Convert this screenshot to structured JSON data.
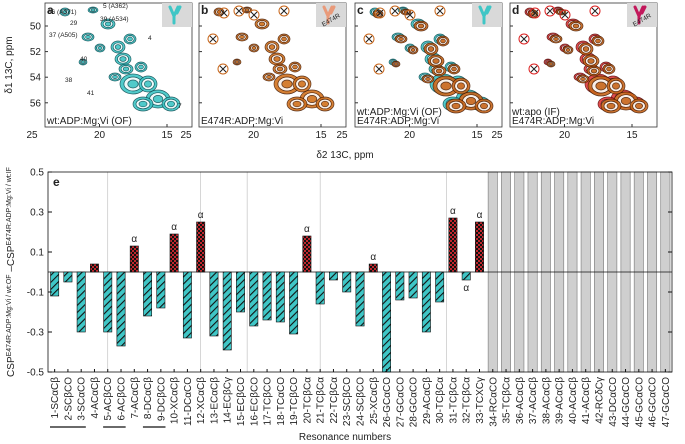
{
  "spectra": {
    "y_label": "δ1 13C, ppm",
    "x_label": "δ2 13C, ppm",
    "y_ticks": [
      50,
      52,
      54,
      56
    ],
    "x_ticks": [
      25,
      20,
      15
    ],
    "panels": [
      {
        "letter": "a",
        "captions": [
          "wt:ADP:Mg:Vi (OF)"
        ],
        "peak_labels": [
          "36 (A371)",
          "5 (A362)",
          "39 (A534)",
          "37 (A505)",
          "29",
          "4",
          "40",
          "38",
          "41",
          "7"
        ]
      },
      {
        "letter": "b",
        "captions": [
          "E474R:ADP:Mg:Vi"
        ],
        "badge": "E474R"
      },
      {
        "letter": "c",
        "captions": [
          "wt:ADP:Mg:Vi (OF)",
          "E474R:ADP:Mg:Vi"
        ]
      },
      {
        "letter": "d",
        "captions": [
          "wt:apo (IF)",
          "E474R:ADP:Mg:Vi"
        ],
        "badge": "E474R"
      }
    ]
  },
  "chart_data": {
    "type": "bar",
    "panel_letter": "e",
    "y_label_parts": [
      "CSP",
      "E474R:ADP:Mg:Vi / wt:OF",
      " –CSP",
      "E474R:ADP:Mg:Vi / wt:IF"
    ],
    "x_label": "Resonance numbers",
    "categories": [
      "1-SCαCβ",
      "2-SCβCO",
      "3-SCαCO",
      "4-ACαCβ",
      "5-ACβCO",
      "6-ACβCO",
      "7-ACαCβ",
      "8-DCαCβ",
      "9-DCβCO",
      "10-XCαCβ",
      "11-DCαCO",
      "12-XCαCβ",
      "13-ECαCβ",
      "14-ECβCγ",
      "15-ECβCO",
      "16-ECβCO",
      "17-TCβCO",
      "18-TCαCO",
      "19-TCβCO",
      "20-TCβCα",
      "21-TCβCα",
      "22-TCβCα",
      "23-SCβCO",
      "24-SCβCO",
      "25-XCαCβ",
      "26-GCαCO",
      "27-GCαCO",
      "28-GCαCO",
      "29-ACαCβ",
      "30-TCβCα",
      "31-TCβCα",
      "32-TCβCα",
      "33-TCXCγ",
      "34-RCαCO",
      "35-TCβCα",
      "36-ACαCβ",
      "37-ACαCβ",
      "38-ACαCβ",
      "39-ACαCβ",
      "40-ACαCβ",
      "41-ACαCβ",
      "42-RCδCγ",
      "43-DCαCO",
      "44-GCαCO",
      "45-GCαCO",
      "46-GCαCO",
      "47-GCαCO"
    ],
    "values": [
      -0.12,
      -0.05,
      -0.3,
      0.04,
      -0.3,
      -0.37,
      0.13,
      -0.22,
      -0.18,
      0.19,
      -0.33,
      0.25,
      -0.32,
      -0.39,
      -0.2,
      -0.27,
      -0.24,
      -0.25,
      -0.31,
      0.18,
      -0.16,
      -0.04,
      -0.1,
      -0.27,
      0.04,
      -0.5,
      -0.14,
      -0.13,
      -0.3,
      -0.15,
      0.27,
      -0.04,
      0.25,
      null,
      null,
      null,
      null,
      null,
      null,
      null,
      null,
      null,
      null,
      null,
      null,
      null,
      null
    ],
    "positive_color": "#c0272d",
    "negative_color": "#3fc6c6",
    "missing_color": "#cfcfcf",
    "ylim": [
      -0.5,
      0.5
    ],
    "yticks": [
      -0.5,
      -0.3,
      -0.1,
      0.1,
      0.3,
      0.5
    ],
    "annotations": [
      {
        "text": "α",
        "category": "7-ACαCβ"
      },
      {
        "text": "α",
        "category": "10-XCαCβ"
      },
      {
        "text": "α",
        "category": "12-XCαCβ"
      },
      {
        "text": "α",
        "category": "20-TCβCα"
      },
      {
        "text": "α",
        "category": "25-XCαCβ"
      },
      {
        "text": "α",
        "category": "31-TCβCα"
      },
      {
        "text": "α",
        "category": "32-TCβCα"
      },
      {
        "text": "α",
        "category": "33-TCXCγ"
      }
    ]
  }
}
